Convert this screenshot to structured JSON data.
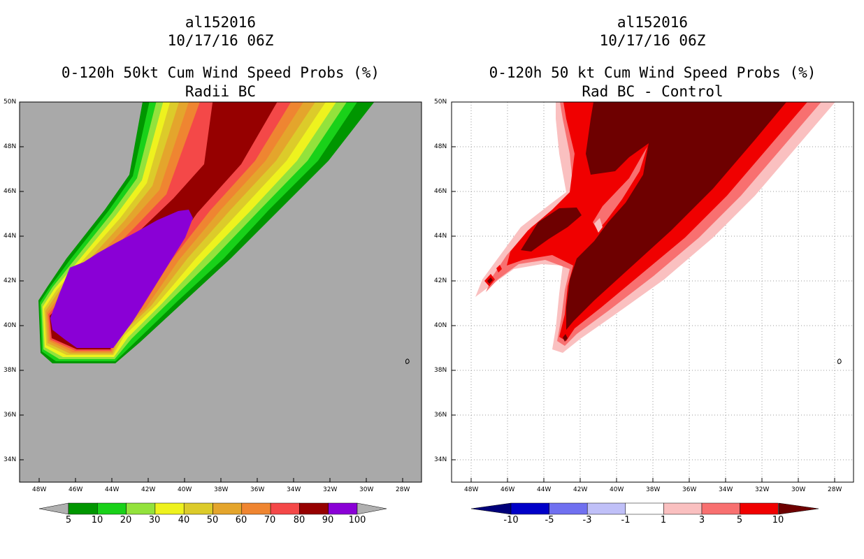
{
  "left": {
    "storm_id": "al152016",
    "datetime": "10/17/16 06Z",
    "title": "0-120h 50kt Cum Wind Speed Probs (%)",
    "subtitle": "Radii BC",
    "lat_labels": [
      "50N",
      "48N",
      "46N",
      "44N",
      "42N",
      "40N",
      "38N",
      "36N",
      "34N"
    ],
    "lon_labels": [
      "48W",
      "46W",
      "44W",
      "42W",
      "40W",
      "38W",
      "36W",
      "34W",
      "32W",
      "30W",
      "28W"
    ],
    "colorbar": {
      "labels": [
        "5",
        "10",
        "20",
        "30",
        "40",
        "50",
        "60",
        "70",
        "80",
        "90",
        "100"
      ],
      "colors": [
        "#009600",
        "#19d119",
        "#93e23c",
        "#eef21e",
        "#dccb2a",
        "#e4a52c",
        "#ef8531",
        "#f44848",
        "#960000",
        "#8a00d6"
      ],
      "under_color": "#b0b0b0",
      "over_color": "#b0b0b0"
    },
    "background_color": "#a9a9a9"
  },
  "right": {
    "storm_id": "al152016",
    "datetime": "10/17/16 06Z",
    "title": "0-120h 50 kt Cum Wind Speed Probs (%)",
    "subtitle": "Rad BC - Control",
    "lat_labels": [
      "50N",
      "48N",
      "46N",
      "44N",
      "42N",
      "40N",
      "38N",
      "36N",
      "34N"
    ],
    "lon_labels": [
      "48W",
      "46W",
      "44W",
      "42W",
      "40W",
      "38W",
      "36W",
      "34W",
      "32W",
      "30W",
      "28W"
    ],
    "colorbar": {
      "labels": [
        "-10",
        "-5",
        "-3",
        "-1",
        "1",
        "3",
        "5",
        "10"
      ],
      "colors": [
        "#0000c8",
        "#7070f0",
        "#c0c0f8",
        "#ffffff",
        "#fac0c0",
        "#f87070",
        "#f00000"
      ],
      "under_color": "#00007a",
      "over_color": "#6e0000"
    },
    "background_color": "#ffffff"
  }
}
